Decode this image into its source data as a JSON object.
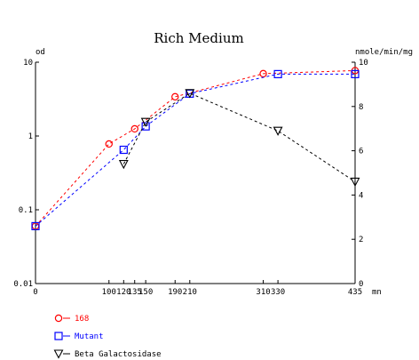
{
  "chart_data": {
    "type": "line",
    "title": "Rich Medium",
    "x": {
      "unit": "mn",
      "lim": [
        0,
        435
      ],
      "ticks": [
        0,
        100,
        120,
        135,
        150,
        190,
        210,
        310,
        330,
        435
      ],
      "tick_labels": [
        "0",
        "100",
        "120",
        "135",
        "150",
        "190",
        "210",
        "310",
        "330",
        "435"
      ]
    },
    "y_left": {
      "label": "od",
      "scale": "log",
      "lim": [
        0.01,
        10
      ],
      "ticks": [
        0.01,
        0.1,
        1,
        10
      ],
      "tick_labels": [
        "0.01",
        "0.1",
        "1",
        "10"
      ]
    },
    "y_right": {
      "label": "nmole/min/mg",
      "scale": "linear",
      "lim": [
        0,
        10
      ],
      "ticks": [
        0,
        2,
        4,
        6,
        8,
        10
      ],
      "tick_labels": [
        "0",
        "2",
        "4",
        "6",
        "8",
        "10"
      ]
    },
    "series": [
      {
        "name": "168",
        "axis": "left",
        "color": "#ff0000",
        "marker": "circle",
        "x": [
          0,
          100,
          135,
          190,
          310,
          435
        ],
        "y": [
          0.06,
          0.78,
          1.25,
          3.4,
          7.0,
          7.7
        ]
      },
      {
        "name": "Mutant",
        "axis": "left",
        "color": "#0000ff",
        "marker": "square",
        "x": [
          0,
          120,
          150,
          210,
          330,
          435
        ],
        "y": [
          0.06,
          0.65,
          1.35,
          3.75,
          6.9,
          6.9
        ]
      },
      {
        "name": "Beta Galactosidase",
        "axis": "right",
        "color": "#000000",
        "marker": "triangle-down",
        "x": [
          120,
          150,
          210,
          330,
          435
        ],
        "y": [
          5.4,
          7.3,
          8.6,
          6.9,
          4.6
        ]
      }
    ],
    "legend": {
      "placement": "bottom-left"
    }
  }
}
